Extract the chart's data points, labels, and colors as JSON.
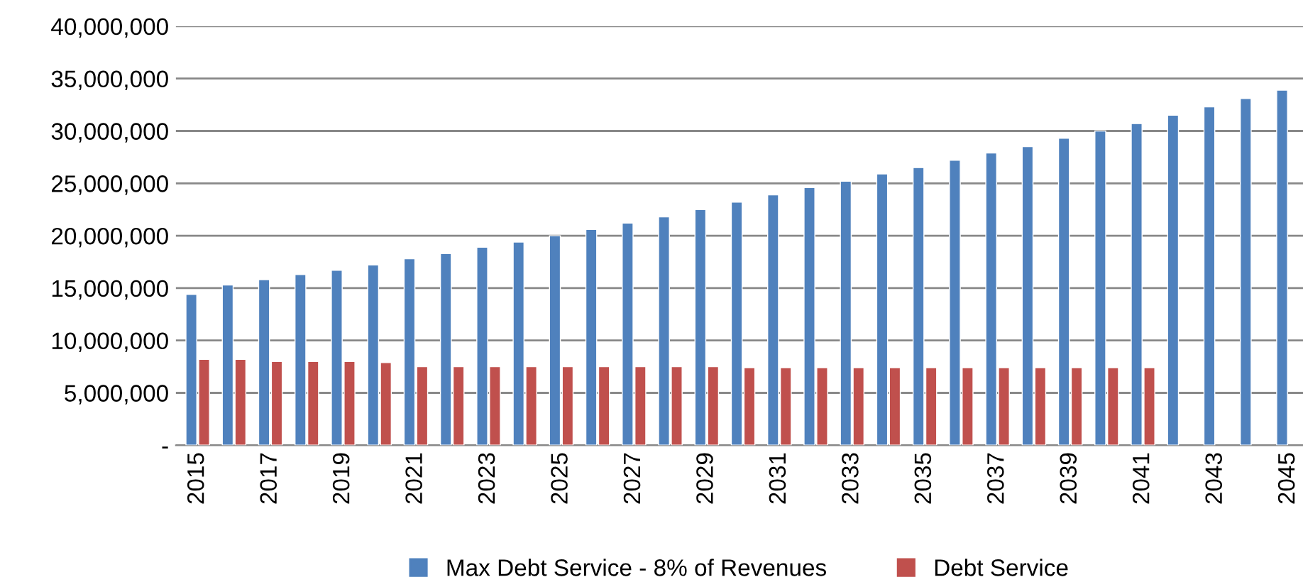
{
  "chart_data": {
    "type": "bar",
    "categories": [
      "2015",
      null,
      "2017",
      null,
      "2019",
      null,
      "2021",
      null,
      "2023",
      null,
      "2025",
      null,
      "2027",
      null,
      "2029",
      null,
      "2031",
      null,
      "2033",
      null,
      "2035",
      null,
      "2037",
      null,
      "2039",
      null,
      "2041",
      null,
      "2043",
      null,
      "2045"
    ],
    "series": [
      {
        "name": "Max Debt Service - 8% of Revenues",
        "color": "#4f81bd",
        "values": [
          14400000,
          15300000,
          15800000,
          16300000,
          16700000,
          17200000,
          17800000,
          18300000,
          18900000,
          19400000,
          20000000,
          20600000,
          21200000,
          21800000,
          22500000,
          23200000,
          23900000,
          24600000,
          25200000,
          25900000,
          26500000,
          27200000,
          27900000,
          28500000,
          29300000,
          30000000,
          30700000,
          31500000,
          32300000,
          33100000,
          33900000
        ]
      },
      {
        "name": "Debt Service",
        "color": "#c0504d",
        "values": [
          8200000,
          8200000,
          8000000,
          8000000,
          8000000,
          7900000,
          7500000,
          7500000,
          7500000,
          7500000,
          7500000,
          7500000,
          7500000,
          7500000,
          7500000,
          7400000,
          7400000,
          7400000,
          7400000,
          7400000,
          7400000,
          7400000,
          7400000,
          7400000,
          7400000,
          7400000,
          7400000,
          null,
          null,
          null,
          null
        ]
      }
    ],
    "ylim": [
      0,
      40000000
    ],
    "yticks": [
      {
        "value": 0,
        "label": "-"
      },
      {
        "value": 5000000,
        "label": "5,000,000"
      },
      {
        "value": 10000000,
        "label": "10,000,000"
      },
      {
        "value": 15000000,
        "label": "15,000,000"
      },
      {
        "value": 20000000,
        "label": "20,000,000"
      },
      {
        "value": 25000000,
        "label": "25,000,000"
      },
      {
        "value": 30000000,
        "label": "30,000,000"
      },
      {
        "value": 35000000,
        "label": "35,000,000"
      },
      {
        "value": 40000000,
        "label": "40,000,000"
      }
    ],
    "grid": "y",
    "legend": "bottom"
  }
}
